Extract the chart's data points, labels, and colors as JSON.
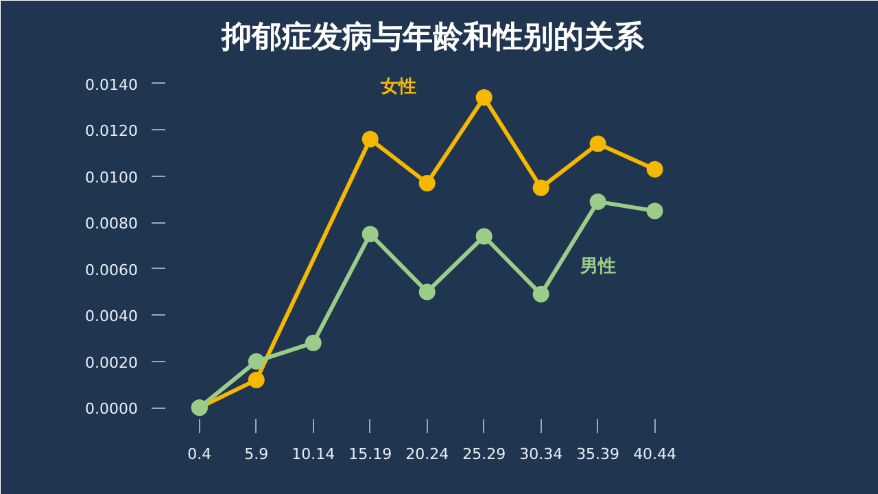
{
  "chart_data": {
    "type": "line",
    "title": "抑郁症发病与年龄和性别的关系",
    "categories": [
      "0.4",
      "5.9",
      "10.14",
      "15.19",
      "20.24",
      "25.29",
      "30.34",
      "35.39",
      "40.44"
    ],
    "series": [
      {
        "name": "女性",
        "color": "#f5b800",
        "values": [
          0,
          0.0012,
          null,
          0.0116,
          0.0097,
          0.0134,
          0.0095,
          0.0114,
          0.0103
        ]
      },
      {
        "name": "男性",
        "color": "#9ccc8a",
        "values": [
          0,
          0.002,
          0.0028,
          0.0075,
          0.005,
          0.0074,
          0.0049,
          0.0089,
          0.0085
        ]
      }
    ],
    "ylim": [
      -0.0005,
      0.0145
    ],
    "yticks": [
      {
        "value": 0,
        "label": "0.0000"
      },
      {
        "value": 0.002,
        "label": "0.0020"
      },
      {
        "value": 0.004,
        "label": "0.0040"
      },
      {
        "value": 0.006,
        "label": "0.0060"
      },
      {
        "value": 0.008,
        "label": "0.0080"
      },
      {
        "value": 0.01,
        "label": "0.0100"
      },
      {
        "value": 0.012,
        "label": "0.0120"
      },
      {
        "value": 0.014,
        "label": "0.0140"
      }
    ],
    "grid": false,
    "marker": "circle",
    "line_style": "solid"
  }
}
